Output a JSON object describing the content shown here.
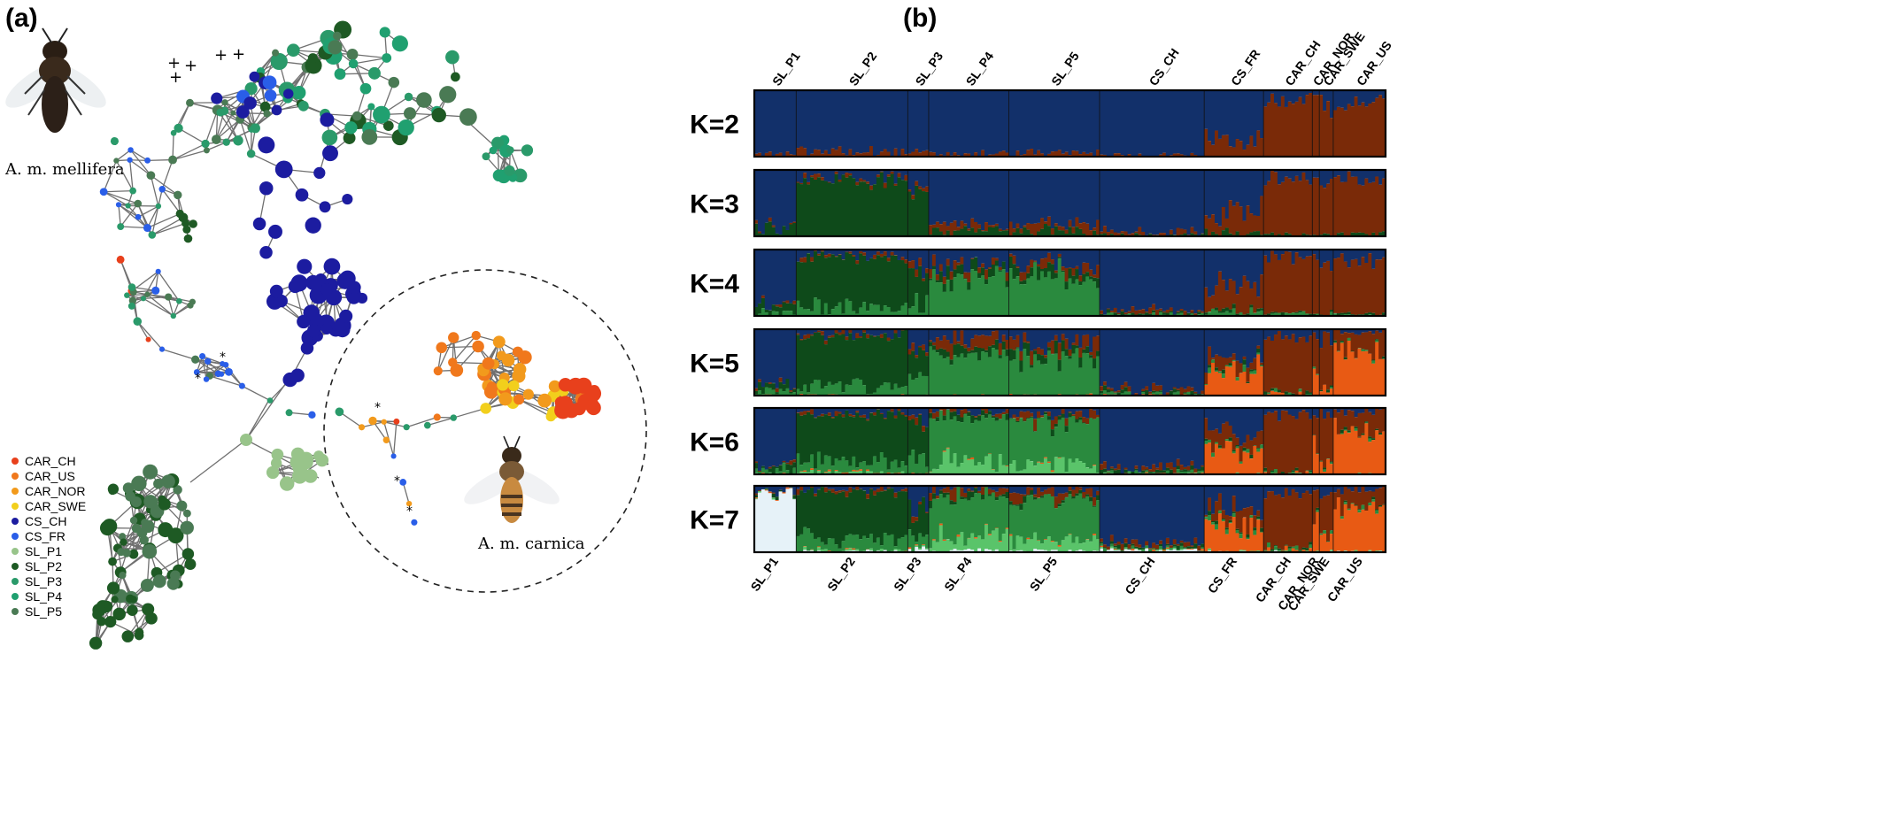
{
  "panels": {
    "a_label": "(a)",
    "b_label": "(b)"
  },
  "network": {
    "subspecies_top": "A. m. mellifera",
    "subspecies_bottom": "A. m. carnica",
    "legend": [
      {
        "name": "CAR_CH",
        "color": "#e8401c"
      },
      {
        "name": "CAR_US",
        "color": "#f0781c"
      },
      {
        "name": "CAR_NOR",
        "color": "#f29a1c"
      },
      {
        "name": "CAR_SWE",
        "color": "#f2cf1c"
      },
      {
        "name": "CS_CH",
        "color": "#1c1ca0"
      },
      {
        "name": "CS_FR",
        "color": "#2a5ee8"
      },
      {
        "name": "SL_P1",
        "color": "#98c48a"
      },
      {
        "name": "SL_P2",
        "color": "#1e5a24"
      },
      {
        "name": "SL_P3",
        "color": "#2a9a6a"
      },
      {
        "name": "SL_P4",
        "color": "#20a070"
      },
      {
        "name": "SL_P5",
        "color": "#4a7a54"
      }
    ]
  },
  "chart_data": {
    "type": "bar",
    "stacked": true,
    "top_labels": [
      "SL_P1",
      "SL_P2",
      "SL_P3",
      "SL_P4",
      "SL_P5",
      "CS_CH",
      "CS_FR",
      "CAR_CH",
      "CAR_NOR",
      "CAR_SWE",
      "CAR_US"
    ],
    "bottom_labels": [
      "SL_P1",
      "SL_P2",
      "SL_P3",
      "SL_P4",
      "SL_P5",
      "CS_CH",
      "CS_FR",
      "CAR_CH",
      "CAR_NOR",
      "CAR_SWE",
      "CAR_US"
    ],
    "k_labels": [
      "K=2",
      "K=3",
      "K=4",
      "K=5",
      "K=6",
      "K=7"
    ],
    "cluster_colors": [
      "#12306a",
      "#7a2a08",
      "#0e4a1a",
      "#2a8a3e",
      "#e85a14",
      "#5ac46a",
      "#e6f2f8"
    ],
    "populations": [
      {
        "name": "SL_P1",
        "n": 12
      },
      {
        "name": "SL_P2",
        "n": 32
      },
      {
        "name": "SL_P3",
        "n": 6
      },
      {
        "name": "SL_P4",
        "n": 23
      },
      {
        "name": "SL_P5",
        "n": 26
      },
      {
        "name": "CS_CH",
        "n": 30
      },
      {
        "name": "CS_FR",
        "n": 17
      },
      {
        "name": "CAR_CH",
        "n": 14
      },
      {
        "name": "CAR_NOR",
        "n": 2
      },
      {
        "name": "CAR_SWE",
        "n": 4
      },
      {
        "name": "CAR_US",
        "n": 15
      }
    ],
    "mean_proportions": {
      "K=2": {
        "SL_P1": [
          0.97,
          0.03
        ],
        "SL_P2": [
          0.93,
          0.07
        ],
        "SL_P3": [
          0.95,
          0.05
        ],
        "SL_P4": [
          0.96,
          0.04
        ],
        "SL_P5": [
          0.95,
          0.05
        ],
        "CS_CH": [
          0.98,
          0.02
        ],
        "CS_FR": [
          0.72,
          0.28
        ],
        "CAR_CH": [
          0.18,
          0.82
        ],
        "CAR_NOR": [
          0.15,
          0.85
        ],
        "CAR_SWE": [
          0.22,
          0.78
        ],
        "CAR_US": [
          0.2,
          0.8
        ]
      },
      "K=3": {
        "SL_P1": [
          0.85,
          0.02,
          0.13
        ],
        "SL_P2": [
          0.12,
          0.03,
          0.85
        ],
        "SL_P3": [
          0.25,
          0.05,
          0.7
        ],
        "SL_P4": [
          0.82,
          0.1,
          0.08
        ],
        "SL_P5": [
          0.8,
          0.12,
          0.08
        ],
        "CS_CH": [
          0.93,
          0.05,
          0.02
        ],
        "CS_FR": [
          0.6,
          0.35,
          0.05
        ],
        "CAR_CH": [
          0.12,
          0.86,
          0.02
        ],
        "CAR_NOR": [
          0.1,
          0.88,
          0.02
        ],
        "CAR_SWE": [
          0.2,
          0.78,
          0.02
        ],
        "CAR_US": [
          0.15,
          0.82,
          0.03
        ]
      },
      "K=4": {
        "SL_P1": [
          0.85,
          0.02,
          0.08,
          0.05
        ],
        "SL_P2": [
          0.1,
          0.03,
          0.75,
          0.12
        ],
        "SL_P3": [
          0.3,
          0.05,
          0.45,
          0.2
        ],
        "SL_P4": [
          0.25,
          0.08,
          0.12,
          0.55
        ],
        "SL_P5": [
          0.22,
          0.1,
          0.1,
          0.58
        ],
        "CS_CH": [
          0.92,
          0.04,
          0.02,
          0.02
        ],
        "CS_FR": [
          0.55,
          0.38,
          0.03,
          0.04
        ],
        "CAR_CH": [
          0.12,
          0.85,
          0.01,
          0.02
        ],
        "CAR_NOR": [
          0.1,
          0.88,
          0.01,
          0.01
        ],
        "CAR_SWE": [
          0.2,
          0.77,
          0.01,
          0.02
        ],
        "CAR_US": [
          0.15,
          0.82,
          0.01,
          0.02
        ]
      },
      "K=5": {
        "SL_P1": [
          0.85,
          0.02,
          0.08,
          0.05,
          0.0
        ],
        "SL_P2": [
          0.08,
          0.03,
          0.77,
          0.12,
          0.0
        ],
        "SL_P3": [
          0.3,
          0.05,
          0.45,
          0.2,
          0.0
        ],
        "SL_P4": [
          0.12,
          0.15,
          0.08,
          0.65,
          0.0
        ],
        "SL_P5": [
          0.2,
          0.15,
          0.1,
          0.55,
          0.0
        ],
        "CS_CH": [
          0.9,
          0.05,
          0.03,
          0.02,
          0.0
        ],
        "CS_FR": [
          0.45,
          0.12,
          0.02,
          0.03,
          0.38
        ],
        "CAR_CH": [
          0.12,
          0.83,
          0.01,
          0.02,
          0.02
        ],
        "CAR_NOR": [
          0.1,
          0.45,
          0.01,
          0.01,
          0.43
        ],
        "CAR_SWE": [
          0.15,
          0.7,
          0.01,
          0.02,
          0.12
        ],
        "CAR_US": [
          0.05,
          0.25,
          0.01,
          0.02,
          0.67
        ]
      },
      "K=6": {
        "SL_P1": [
          0.85,
          0.02,
          0.06,
          0.07,
          0.0,
          0.0
        ],
        "SL_P2": [
          0.08,
          0.03,
          0.7,
          0.17,
          0.0,
          0.02
        ],
        "SL_P3": [
          0.3,
          0.05,
          0.45,
          0.2,
          0.0,
          0.0
        ],
        "SL_P4": [
          0.05,
          0.05,
          0.05,
          0.65,
          0.0,
          0.2
        ],
        "SL_P5": [
          0.08,
          0.08,
          0.05,
          0.64,
          0.0,
          0.15
        ],
        "CS_CH": [
          0.9,
          0.05,
          0.03,
          0.02,
          0.0,
          0.0
        ],
        "CS_FR": [
          0.35,
          0.2,
          0.02,
          0.03,
          0.4,
          0.0
        ],
        "CAR_CH": [
          0.12,
          0.83,
          0.01,
          0.02,
          0.02,
          0.0
        ],
        "CAR_NOR": [
          0.1,
          0.45,
          0.01,
          0.01,
          0.43,
          0.0
        ],
        "CAR_SWE": [
          0.1,
          0.7,
          0.01,
          0.02,
          0.17,
          0.0
        ],
        "CAR_US": [
          0.05,
          0.25,
          0.01,
          0.02,
          0.67,
          0.0
        ]
      },
      "K=7": {
        "SL_P1": [
          0.08,
          0.0,
          0.02,
          0.0,
          0.0,
          0.0,
          0.9
        ],
        "SL_P2": [
          0.05,
          0.05,
          0.7,
          0.17,
          0.0,
          0.02,
          0.01
        ],
        "SL_P3": [
          0.3,
          0.05,
          0.45,
          0.15,
          0.0,
          0.0,
          0.05
        ],
        "SL_P4": [
          0.05,
          0.08,
          0.05,
          0.6,
          0.0,
          0.2,
          0.02
        ],
        "SL_P5": [
          0.08,
          0.1,
          0.05,
          0.6,
          0.0,
          0.15,
          0.02
        ],
        "CS_CH": [
          0.88,
          0.05,
          0.03,
          0.02,
          0.0,
          0.0,
          0.02
        ],
        "CS_FR": [
          0.35,
          0.2,
          0.02,
          0.03,
          0.4,
          0.0,
          0.0
        ],
        "CAR_CH": [
          0.12,
          0.83,
          0.01,
          0.02,
          0.02,
          0.0,
          0.0
        ],
        "CAR_NOR": [
          0.1,
          0.45,
          0.01,
          0.01,
          0.43,
          0.0,
          0.0
        ],
        "CAR_SWE": [
          0.1,
          0.7,
          0.01,
          0.02,
          0.17,
          0.0,
          0.0
        ],
        "CAR_US": [
          0.05,
          0.25,
          0.01,
          0.02,
          0.67,
          0.0,
          0.0
        ]
      }
    }
  }
}
